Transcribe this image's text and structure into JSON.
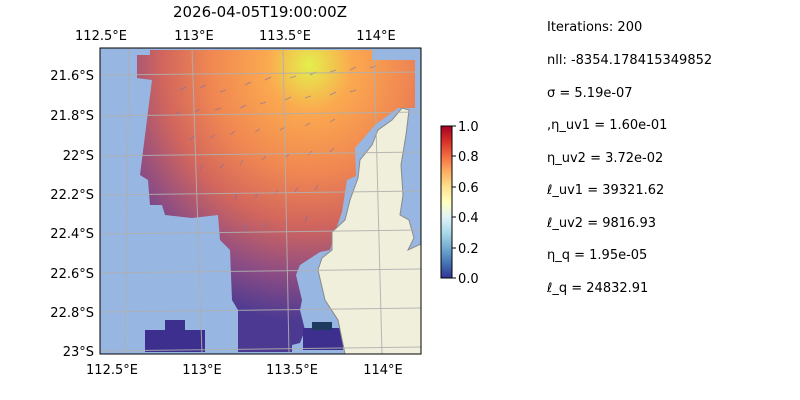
{
  "title": "2026-04-05T19:00:00Z",
  "map": {
    "x_ticks": [
      "112.5°E",
      "113°E",
      "113.5°E",
      "114°E"
    ],
    "y_ticks": [
      "21.6°S",
      "21.8°S",
      "22°S",
      "22.2°S",
      "22.4°S",
      "22.6°S",
      "22.8°S",
      "23°S"
    ],
    "ocean_color": "#97b6e1",
    "land_color": "#efefdb",
    "colormap": "RdYlBu_r"
  },
  "colorbar": {
    "ticks": [
      "0.0",
      "0.2",
      "0.4",
      "0.6",
      "0.8",
      "1.0"
    ],
    "range": [
      0,
      1
    ]
  },
  "stats": [
    "Iterations: 200",
    "nll: -8354.178415349852",
    "σ = 5.19e-07",
    ",η_uv1 = 1.60e-01",
    "η_uv2 = 3.72e-02",
    "ℓ_uv1 = 39321.62",
    "ℓ_uv2 = 9816.93",
    "η_q = 1.95e-05",
    "ℓ_q = 24832.91"
  ]
}
